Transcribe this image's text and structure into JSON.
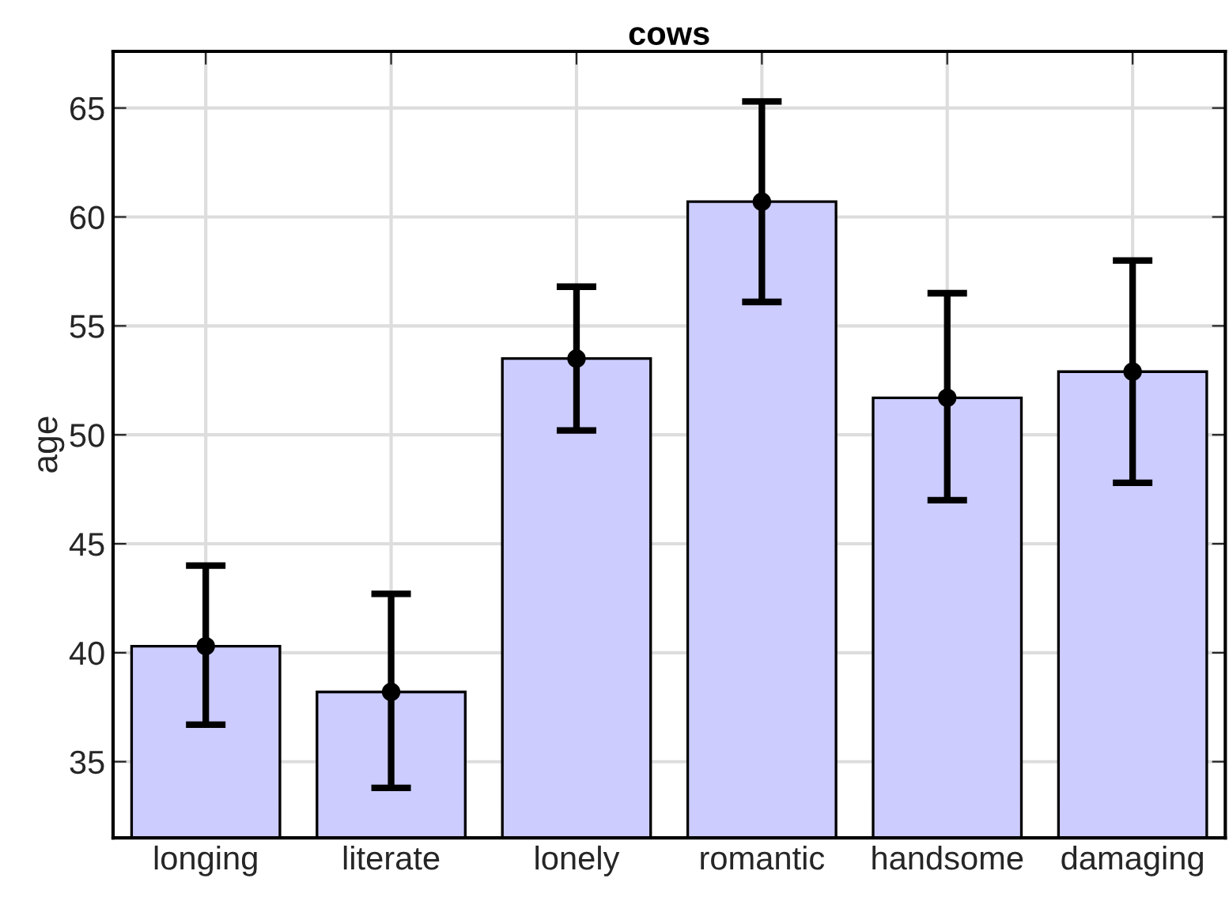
{
  "chart_data": {
    "type": "bar",
    "title": "cows",
    "ylabel": "age",
    "categories": [
      "longing",
      "literate",
      "lonely",
      "romantic",
      "handsome",
      "damaging"
    ],
    "series": [
      {
        "color": "#ccccff",
        "values": [
          40.3,
          38.2,
          53.5,
          60.7,
          51.7,
          52.9
        ],
        "errors": [
          [
            36.7,
            44.0
          ],
          [
            33.8,
            42.7
          ],
          [
            50.2,
            56.8
          ],
          [
            56.1,
            65.3
          ],
          [
            47.0,
            56.5
          ],
          [
            47.8,
            58.0
          ]
        ]
      },
      {
        "type": "scatter",
        "color": "#000000",
        "marker": "circle",
        "x": [
          "longing",
          "literate",
          "lonely",
          "romantic",
          "handsome",
          "damaging"
        ],
        "values": [
          40.3,
          38.2,
          53.5,
          60.7,
          51.7,
          52.9
        ]
      }
    ],
    "ylim": [
      31.5,
      67.6
    ],
    "yticks": [
      35,
      40,
      45,
      50,
      55,
      60,
      65
    ],
    "grid": true
  }
}
